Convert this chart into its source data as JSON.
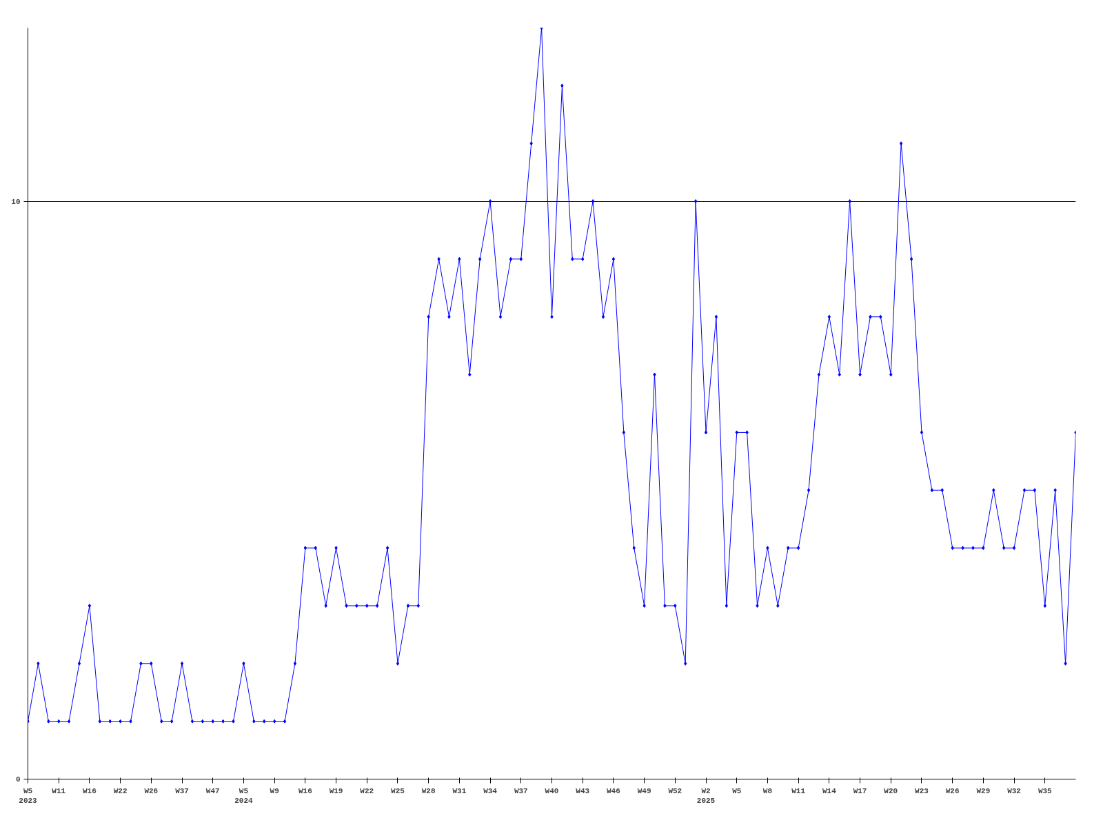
{
  "chart_data": {
    "type": "line",
    "categories": [
      "W5\n2023",
      null,
      null,
      "W11",
      null,
      null,
      "W16",
      null,
      null,
      "W22",
      null,
      null,
      "W26",
      null,
      null,
      "W37",
      null,
      null,
      "W47",
      null,
      null,
      "W5\n2024",
      null,
      null,
      "W9",
      null,
      null,
      "W16",
      null,
      null,
      "W19",
      null,
      null,
      "W22",
      null,
      null,
      "W25",
      null,
      null,
      "W28",
      null,
      null,
      "W31",
      null,
      null,
      "W34",
      null,
      null,
      "W37",
      null,
      null,
      "W40",
      null,
      null,
      "W43",
      null,
      null,
      "W46",
      null,
      null,
      "W49",
      null,
      null,
      "W52",
      null,
      null,
      "W2\n2025",
      null,
      null,
      "W5",
      null,
      null,
      "W8",
      null,
      null,
      "W11",
      null,
      null,
      "W14",
      null,
      null,
      "W17",
      null,
      null,
      "W20",
      null,
      null,
      "W23",
      null,
      null,
      "W26",
      null,
      null,
      "W29",
      null,
      null,
      "W32",
      null,
      null,
      "W35",
      null,
      null,
      null
    ],
    "series": [
      {
        "color": "#0000ff",
        "values": [
          1,
          2,
          1,
          1,
          1,
          2,
          3,
          1,
          1,
          1,
          1,
          2,
          2,
          1,
          1,
          2,
          1,
          1,
          1,
          1,
          1,
          2,
          1,
          1,
          1,
          1,
          2,
          4,
          4,
          3,
          4,
          3,
          3,
          3,
          3,
          4,
          2,
          3,
          3,
          8,
          9,
          8,
          9,
          7,
          9,
          10,
          8,
          9,
          9,
          11,
          13,
          8,
          12,
          9,
          9,
          10,
          8,
          9,
          6,
          4,
          3,
          7,
          3,
          3,
          2,
          10,
          6,
          8,
          3,
          6,
          6,
          3,
          4,
          3,
          4,
          4,
          5,
          7,
          8,
          7,
          10,
          7,
          8,
          8,
          7,
          11,
          9,
          6,
          5,
          5,
          4,
          4,
          4,
          4,
          5,
          4,
          4,
          5,
          5,
          3,
          5,
          2,
          6
        ]
      }
    ],
    "ylim": [
      0,
      13
    ],
    "yticks": [
      0,
      10
    ],
    "grid": "y",
    "marker": "diamond",
    "line_style": "solid"
  }
}
